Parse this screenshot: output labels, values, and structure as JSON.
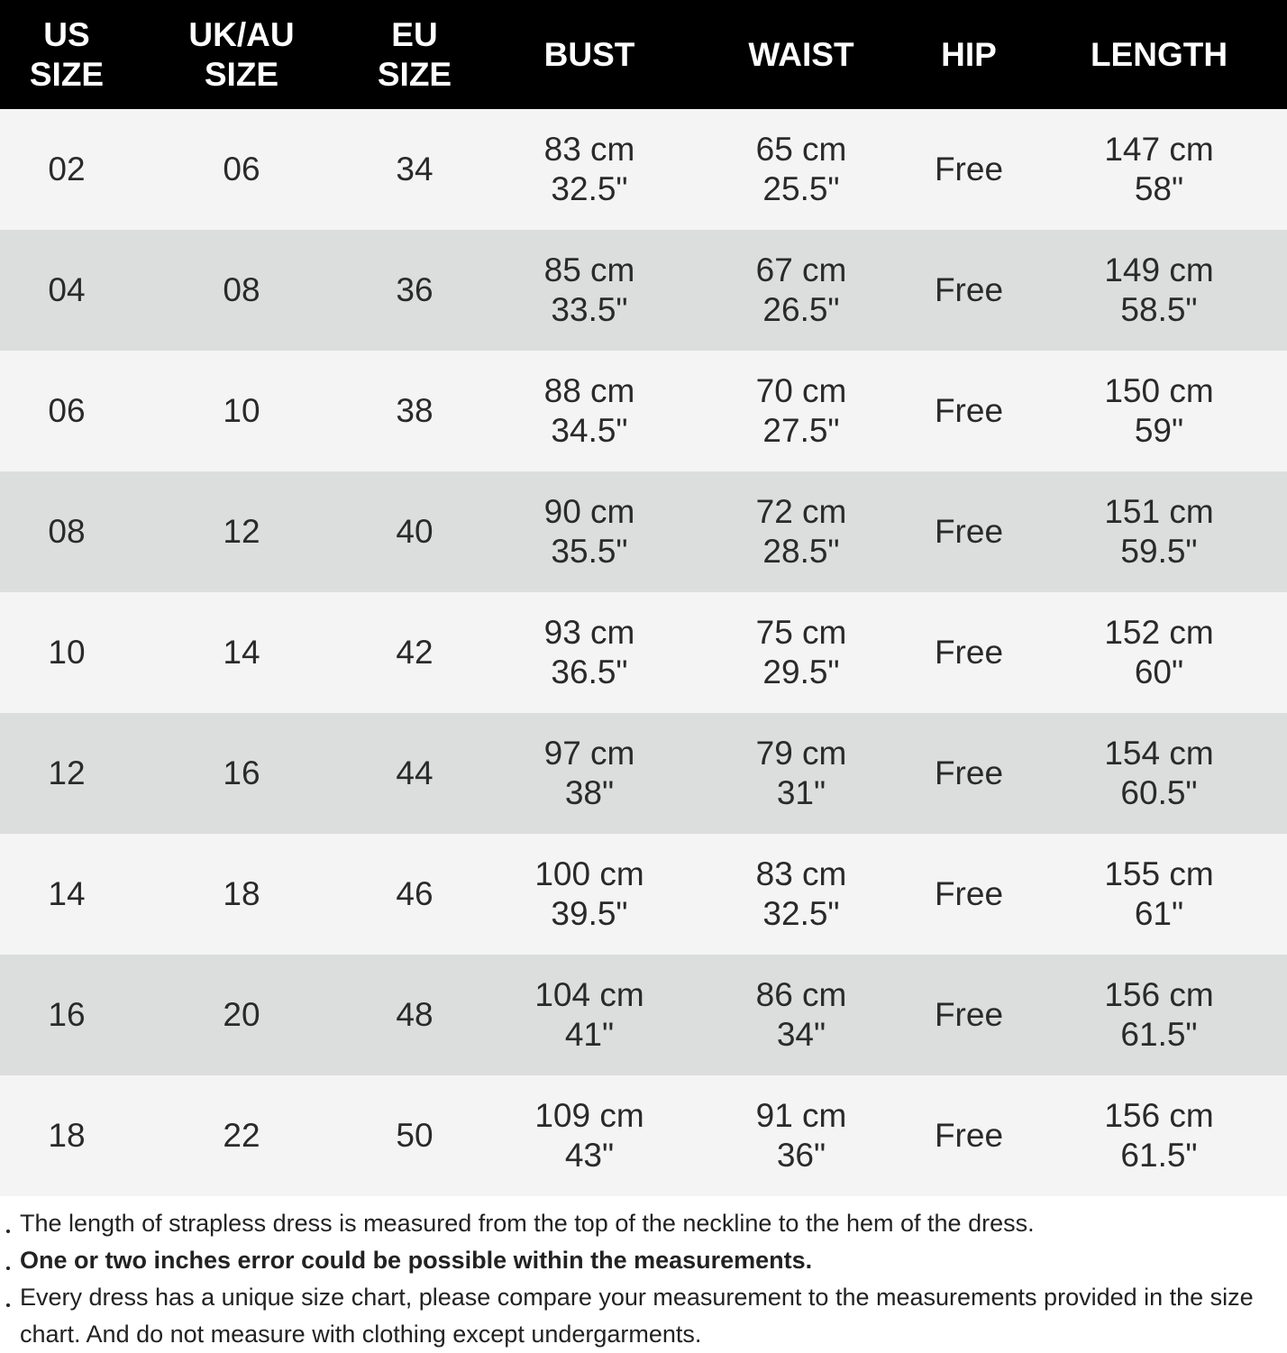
{
  "table": {
    "header": [
      [
        "US",
        "SIZE"
      ],
      [
        "UK/AU",
        "SIZE"
      ],
      [
        "EU",
        "SIZE"
      ],
      [
        "BUST"
      ],
      [
        "WAIST"
      ],
      [
        "HIP"
      ],
      [
        "LENGTH"
      ]
    ],
    "rows": [
      [
        [
          "02"
        ],
        [
          "06"
        ],
        [
          "34"
        ],
        [
          "83 cm",
          "32.5\""
        ],
        [
          "65 cm",
          "25.5\""
        ],
        [
          "Free"
        ],
        [
          "147 cm",
          "58\""
        ]
      ],
      [
        [
          "04"
        ],
        [
          "08"
        ],
        [
          "36"
        ],
        [
          "85 cm",
          "33.5\""
        ],
        [
          "67 cm",
          "26.5\""
        ],
        [
          "Free"
        ],
        [
          "149 cm",
          "58.5\""
        ]
      ],
      [
        [
          "06"
        ],
        [
          "10"
        ],
        [
          "38"
        ],
        [
          "88 cm",
          "34.5\""
        ],
        [
          "70 cm",
          "27.5\""
        ],
        [
          "Free"
        ],
        [
          "150 cm",
          "59\""
        ]
      ],
      [
        [
          "08"
        ],
        [
          "12"
        ],
        [
          "40"
        ],
        [
          "90 cm",
          "35.5\""
        ],
        [
          "72 cm",
          "28.5\""
        ],
        [
          "Free"
        ],
        [
          "151 cm",
          "59.5\""
        ]
      ],
      [
        [
          "10"
        ],
        [
          "14"
        ],
        [
          "42"
        ],
        [
          "93 cm",
          "36.5\""
        ],
        [
          "75 cm",
          "29.5\""
        ],
        [
          "Free"
        ],
        [
          "152 cm",
          "60\""
        ]
      ],
      [
        [
          "12"
        ],
        [
          "16"
        ],
        [
          "44"
        ],
        [
          "97 cm",
          "38\""
        ],
        [
          "79 cm",
          "31\""
        ],
        [
          "Free"
        ],
        [
          "154 cm",
          "60.5\""
        ]
      ],
      [
        [
          "14"
        ],
        [
          "18"
        ],
        [
          "46"
        ],
        [
          "100 cm",
          "39.5\""
        ],
        [
          "83 cm",
          "32.5\""
        ],
        [
          "Free"
        ],
        [
          "155 cm",
          "61\""
        ]
      ],
      [
        [
          "16"
        ],
        [
          "20"
        ],
        [
          "48"
        ],
        [
          "104 cm",
          "41\""
        ],
        [
          "86 cm",
          "34\""
        ],
        [
          "Free"
        ],
        [
          "156 cm",
          "61.5\""
        ]
      ],
      [
        [
          "18"
        ],
        [
          "22"
        ],
        [
          "50"
        ],
        [
          "109 cm",
          "43\""
        ],
        [
          "91 cm",
          "36\""
        ],
        [
          "Free"
        ],
        [
          "156 cm",
          "61.5\""
        ]
      ]
    ]
  },
  "notes": [
    {
      "text": "The length of strapless dress is measured from the top of the neckline to the hem of the dress.",
      "bold": false
    },
    {
      "text": "One or two inches error could be possible within the measurements.",
      "bold": true
    },
    {
      "text": "Every dress has a unique size chart, please compare your measurement to the measurements provided in the size chart. And do not measure with clothing except undergarments.",
      "bold": false
    }
  ]
}
